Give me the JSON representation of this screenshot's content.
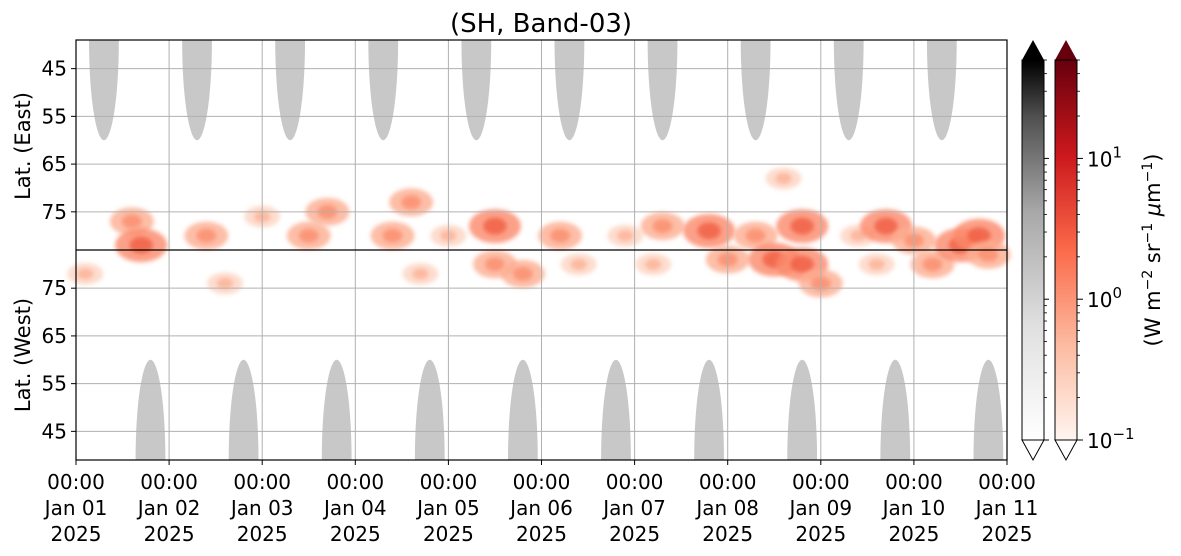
{
  "chart_data": {
    "type": "heatmap",
    "title": "(SH, Band-03)",
    "ylabel_east": "Lat. (East)",
    "ylabel_west": "Lat. (West)",
    "yticks_east": [
      "45",
      "55",
      "65",
      "75"
    ],
    "yticks_west": [
      "75",
      "65",
      "55",
      "45"
    ],
    "ylim_east": [
      39,
      83
    ],
    "ylim_west": [
      83,
      39
    ],
    "xlim_days": [
      0,
      10
    ],
    "xticks": [
      {
        "time": "00:00",
        "date": "Jan 01",
        "year": "2025"
      },
      {
        "time": "00:00",
        "date": "Jan 02",
        "year": "2025"
      },
      {
        "time": "00:00",
        "date": "Jan 03",
        "year": "2025"
      },
      {
        "time": "00:00",
        "date": "Jan 04",
        "year": "2025"
      },
      {
        "time": "00:00",
        "date": "Jan 05",
        "year": "2025"
      },
      {
        "time": "00:00",
        "date": "Jan 06",
        "year": "2025"
      },
      {
        "time": "00:00",
        "date": "Jan 07",
        "year": "2025"
      },
      {
        "time": "00:00",
        "date": "Jan 08",
        "year": "2025"
      },
      {
        "time": "00:00",
        "date": "Jan 09",
        "year": "2025"
      },
      {
        "time": "00:00",
        "date": "Jan 10",
        "year": "2025"
      },
      {
        "time": "00:00",
        "date": "Jan 11",
        "year": "2025"
      }
    ],
    "colorbar": {
      "label": "(W m$^{-2}$ sr$^{-1}$ $\\mu$m$^{-1}$)",
      "scale": "log",
      "range": [
        0.1,
        50
      ],
      "ticks": [
        {
          "value": 0.1,
          "base": "10",
          "exp": "−1"
        },
        {
          "value": 1,
          "base": "10",
          "exp": "0"
        },
        {
          "value": 10,
          "base": "10",
          "exp": "1"
        }
      ],
      "cmaps": [
        "Greys",
        "Reds"
      ],
      "extend": "both"
    },
    "grid": true,
    "night_masks": {
      "color": "#c8c8c8",
      "east_centers_days": [
        0.3,
        1.3,
        2.3,
        3.3,
        4.3,
        5.3,
        6.3,
        7.3,
        8.3,
        9.3
      ],
      "west_centers_days": [
        0.8,
        1.8,
        2.8,
        3.8,
        4.8,
        5.8,
        6.8,
        7.8,
        8.8,
        9.8
      ],
      "edge_lat": 60,
      "half_width_days": 0.16
    },
    "emission_clusters": [
      {
        "day": 0.6,
        "lat": 77,
        "hemi": "east",
        "intensity": 2
      },
      {
        "day": 0.7,
        "lat": 82,
        "hemi": "east",
        "intensity": 3
      },
      {
        "day": 0.1,
        "lat": 78,
        "hemi": "west",
        "intensity": 1
      },
      {
        "day": 1.4,
        "lat": 80,
        "hemi": "east",
        "intensity": 2
      },
      {
        "day": 1.6,
        "lat": 76,
        "hemi": "west",
        "intensity": 1
      },
      {
        "day": 2.0,
        "lat": 76,
        "hemi": "east",
        "intensity": 1
      },
      {
        "day": 2.5,
        "lat": 80,
        "hemi": "east",
        "intensity": 2
      },
      {
        "day": 2.7,
        "lat": 75,
        "hemi": "east",
        "intensity": 2
      },
      {
        "day": 3.4,
        "lat": 80,
        "hemi": "east",
        "intensity": 2
      },
      {
        "day": 3.6,
        "lat": 73,
        "hemi": "east",
        "intensity": 2
      },
      {
        "day": 3.7,
        "lat": 78,
        "hemi": "west",
        "intensity": 1
      },
      {
        "day": 4.0,
        "lat": 80,
        "hemi": "east",
        "intensity": 1
      },
      {
        "day": 4.5,
        "lat": 78,
        "hemi": "east",
        "intensity": 3
      },
      {
        "day": 4.5,
        "lat": 80,
        "hemi": "west",
        "intensity": 2
      },
      {
        "day": 4.8,
        "lat": 78,
        "hemi": "west",
        "intensity": 2
      },
      {
        "day": 5.2,
        "lat": 80,
        "hemi": "east",
        "intensity": 2
      },
      {
        "day": 5.4,
        "lat": 80,
        "hemi": "west",
        "intensity": 1
      },
      {
        "day": 5.9,
        "lat": 80,
        "hemi": "east",
        "intensity": 1
      },
      {
        "day": 6.3,
        "lat": 78,
        "hemi": "east",
        "intensity": 2
      },
      {
        "day": 6.2,
        "lat": 80,
        "hemi": "west",
        "intensity": 1
      },
      {
        "day": 6.8,
        "lat": 79,
        "hemi": "east",
        "intensity": 3
      },
      {
        "day": 7.0,
        "lat": 81,
        "hemi": "west",
        "intensity": 2
      },
      {
        "day": 7.3,
        "lat": 80,
        "hemi": "east",
        "intensity": 2
      },
      {
        "day": 7.5,
        "lat": 81,
        "hemi": "west",
        "intensity": 3
      },
      {
        "day": 7.8,
        "lat": 78,
        "hemi": "east",
        "intensity": 3
      },
      {
        "day": 7.8,
        "lat": 80,
        "hemi": "west",
        "intensity": 3
      },
      {
        "day": 8.0,
        "lat": 76,
        "hemi": "west",
        "intensity": 2
      },
      {
        "day": 7.6,
        "lat": 68,
        "hemi": "east",
        "intensity": 1
      },
      {
        "day": 8.4,
        "lat": 80,
        "hemi": "east",
        "intensity": 1
      },
      {
        "day": 8.6,
        "lat": 80,
        "hemi": "west",
        "intensity": 1
      },
      {
        "day": 8.7,
        "lat": 78,
        "hemi": "east",
        "intensity": 3
      },
      {
        "day": 9.0,
        "lat": 81,
        "hemi": "east",
        "intensity": 2
      },
      {
        "day": 9.2,
        "lat": 80,
        "hemi": "west",
        "intensity": 2
      },
      {
        "day": 9.5,
        "lat": 82,
        "hemi": "east",
        "intensity": 3
      },
      {
        "day": 9.7,
        "lat": 80,
        "hemi": "east",
        "intensity": 3
      },
      {
        "day": 9.8,
        "lat": 82,
        "hemi": "west",
        "intensity": 2
      }
    ]
  }
}
